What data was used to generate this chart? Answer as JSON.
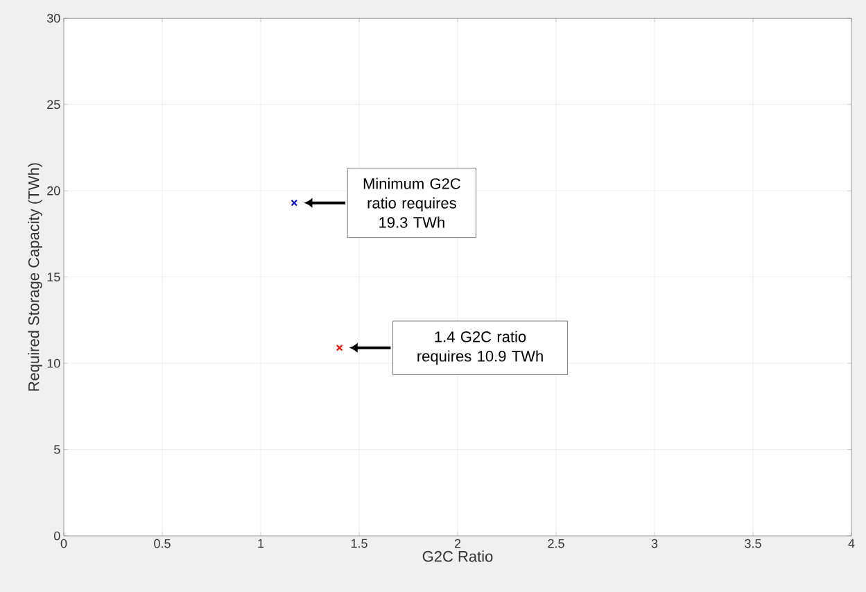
{
  "chart_data": {
    "type": "scatter",
    "xlabel": "G2C Ratio",
    "ylabel": "Required Storage Capacity (TWh)",
    "series": [
      {
        "color": "#0000ff",
        "x": [
          1.17
        ],
        "values": [
          19.3
        ]
      },
      {
        "color": "#ff0000",
        "x": [
          1.4
        ],
        "values": [
          10.9
        ]
      }
    ],
    "xlim": [
      0,
      4
    ],
    "ylim": [
      0,
      30
    ],
    "xticks": [
      0,
      0.5,
      1,
      1.5,
      2,
      2.5,
      3,
      3.5,
      4
    ],
    "yticks": [
      0,
      5,
      10,
      15,
      20,
      25,
      30
    ],
    "grid": true,
    "marker": "cross",
    "annotations": [
      "Minimum G2C ratio requires 19.3 TWh",
      "1.4 G2C ratio requires 10.9 TWh"
    ]
  }
}
